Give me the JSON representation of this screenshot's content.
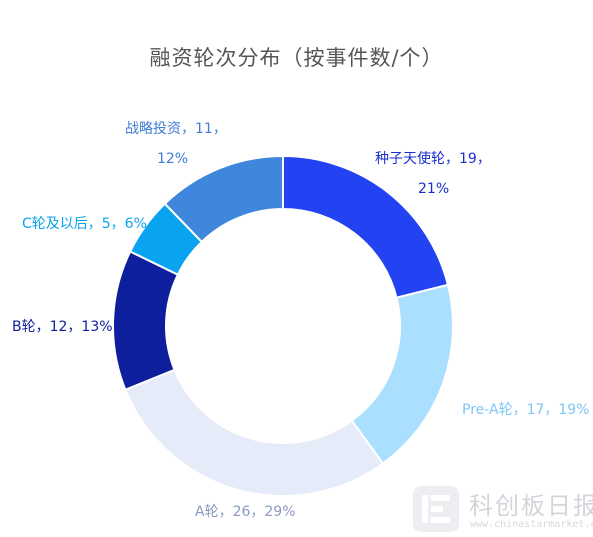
{
  "chart_data": {
    "type": "pie",
    "donut": true,
    "title": "融资轮次分布（按事件数/个）",
    "slices": [
      {
        "name": "种子天使轮",
        "value": 19,
        "percent": "21%",
        "color": "#2342f2",
        "label_lines": [
          "种子天使轮，19，",
          "21%"
        ]
      },
      {
        "name": "Pre-A轮",
        "value": 17,
        "percent": "19%",
        "color": "#abdfff",
        "label_lines": [
          "Pre-A轮，17，19%"
        ]
      },
      {
        "name": "A轮",
        "value": 26,
        "percent": "29%",
        "color": "#e5ebf8",
        "label_lines": [
          "A轮，26，29%"
        ]
      },
      {
        "name": "B轮",
        "value": 12,
        "percent": "13%",
        "color": "#0d1f9c",
        "label_lines": [
          "B轮，12，13%"
        ]
      },
      {
        "name": "C轮及以后",
        "value": 5,
        "percent": "6%",
        "color": "#0aa3f0",
        "label_lines": [
          "C轮及以后，5，6%"
        ]
      },
      {
        "name": "战略投资",
        "value": 11,
        "percent": "12%",
        "color": "#3f86dd",
        "label_lines": [
          "战略投资，11，",
          "12%"
        ]
      }
    ],
    "label_colors": [
      "#1a2fd0",
      "#7cc7f5",
      "#8a99c2",
      "#0d1f9c",
      "#0aa3f0",
      "#3f7ed4"
    ]
  },
  "watermark": {
    "name": "科创板日报",
    "url": "www.chinastarmarket.cn"
  }
}
